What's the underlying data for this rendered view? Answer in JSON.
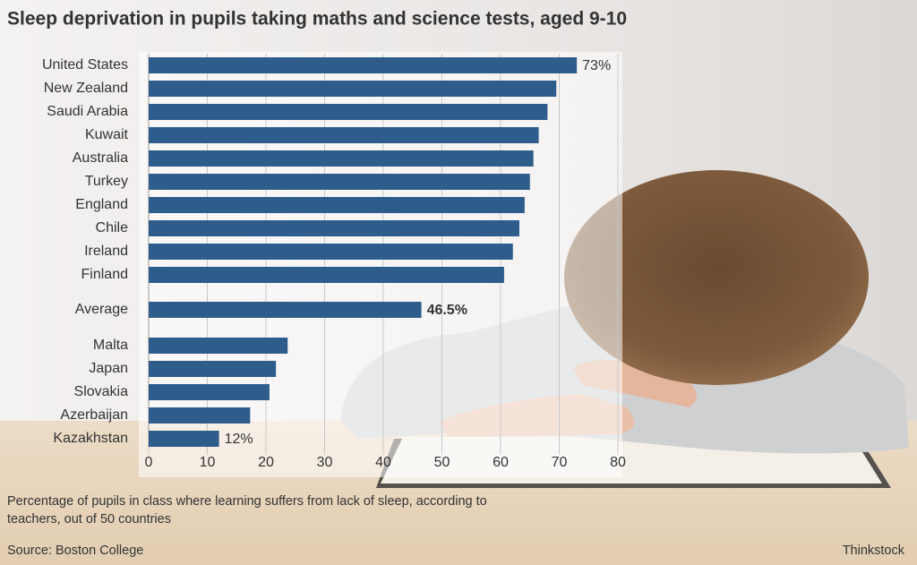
{
  "chart_data": {
    "type": "barh",
    "title": "Sleep deprivation in pupils taking maths and science tests, aged 9-10",
    "categories": [
      "United States",
      "New Zealand",
      "Saudi Arabia",
      "Kuwait",
      "Australia",
      "Turkey",
      "England",
      "Chile",
      "Ireland",
      "Finland",
      "Average",
      "Malta",
      "Japan",
      "Slovakia",
      "Azerbaijan",
      "Kazakhstan"
    ],
    "values": [
      73,
      69.5,
      68,
      66.5,
      65.6,
      65,
      64.1,
      63.2,
      62.1,
      60.6,
      46.5,
      23.7,
      21.7,
      20.6,
      17.3,
      12
    ],
    "value_labels": [
      "73%",
      null,
      null,
      null,
      null,
      null,
      null,
      null,
      null,
      null,
      "46.5%",
      null,
      null,
      null,
      null,
      "12%"
    ],
    "color": "#2e5d8c",
    "xlim": [
      0,
      80
    ],
    "xticks": [
      0,
      10,
      20,
      30,
      40,
      50,
      60,
      70,
      80
    ],
    "grid": true,
    "note": "Percentage of pupils in class where learning suffers from lack of sleep, according to teachers, out of 50 countries",
    "source": "Source: Boston College",
    "credit": "Thinkstock"
  }
}
